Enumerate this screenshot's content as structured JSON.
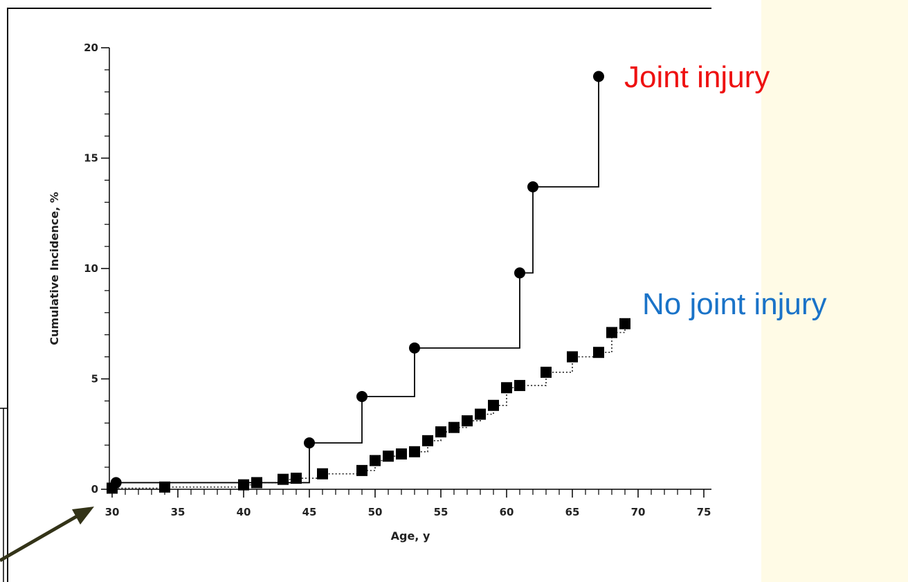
{
  "colors": {
    "side_panel": "#fffbe6",
    "frame": "#000000",
    "axis": "#000000",
    "arrow": "#333318",
    "joint_label": "#ee1111",
    "no_joint_label": "#1a73c8"
  },
  "chart_data": {
    "type": "line",
    "step": true,
    "xlabel": "Age, y",
    "ylabel": "Cumulative Incidence, %",
    "xlim": [
      30,
      75
    ],
    "ylim": [
      0,
      20
    ],
    "xticks": [
      "30",
      "35",
      "40",
      "45",
      "50",
      "55",
      "60",
      "65",
      "70",
      "75"
    ],
    "yticks": [
      "0",
      "5",
      "10",
      "15",
      "20"
    ],
    "grid": false,
    "series": [
      {
        "name": "Joint injury",
        "marker": "circle",
        "line_style": "solid",
        "x": [
          30.3,
          45,
          49,
          53,
          61,
          62,
          67
        ],
        "y": [
          0.3,
          2.1,
          4.2,
          6.4,
          9.8,
          13.7,
          18.7
        ]
      },
      {
        "name": "No joint injury",
        "marker": "square",
        "line_style": "dotted",
        "x": [
          30,
          34,
          40,
          41,
          43,
          44,
          46,
          49,
          50,
          51,
          52,
          53,
          54,
          55,
          56,
          57,
          58,
          59,
          60,
          61,
          63,
          65,
          67,
          68,
          69
        ],
        "y": [
          0.05,
          0.1,
          0.2,
          0.3,
          0.45,
          0.5,
          0.7,
          0.85,
          1.3,
          1.5,
          1.6,
          1.7,
          2.2,
          2.6,
          2.8,
          3.1,
          3.4,
          3.8,
          4.6,
          4.7,
          5.3,
          6.0,
          6.2,
          7.1,
          7.5
        ]
      }
    ]
  }
}
